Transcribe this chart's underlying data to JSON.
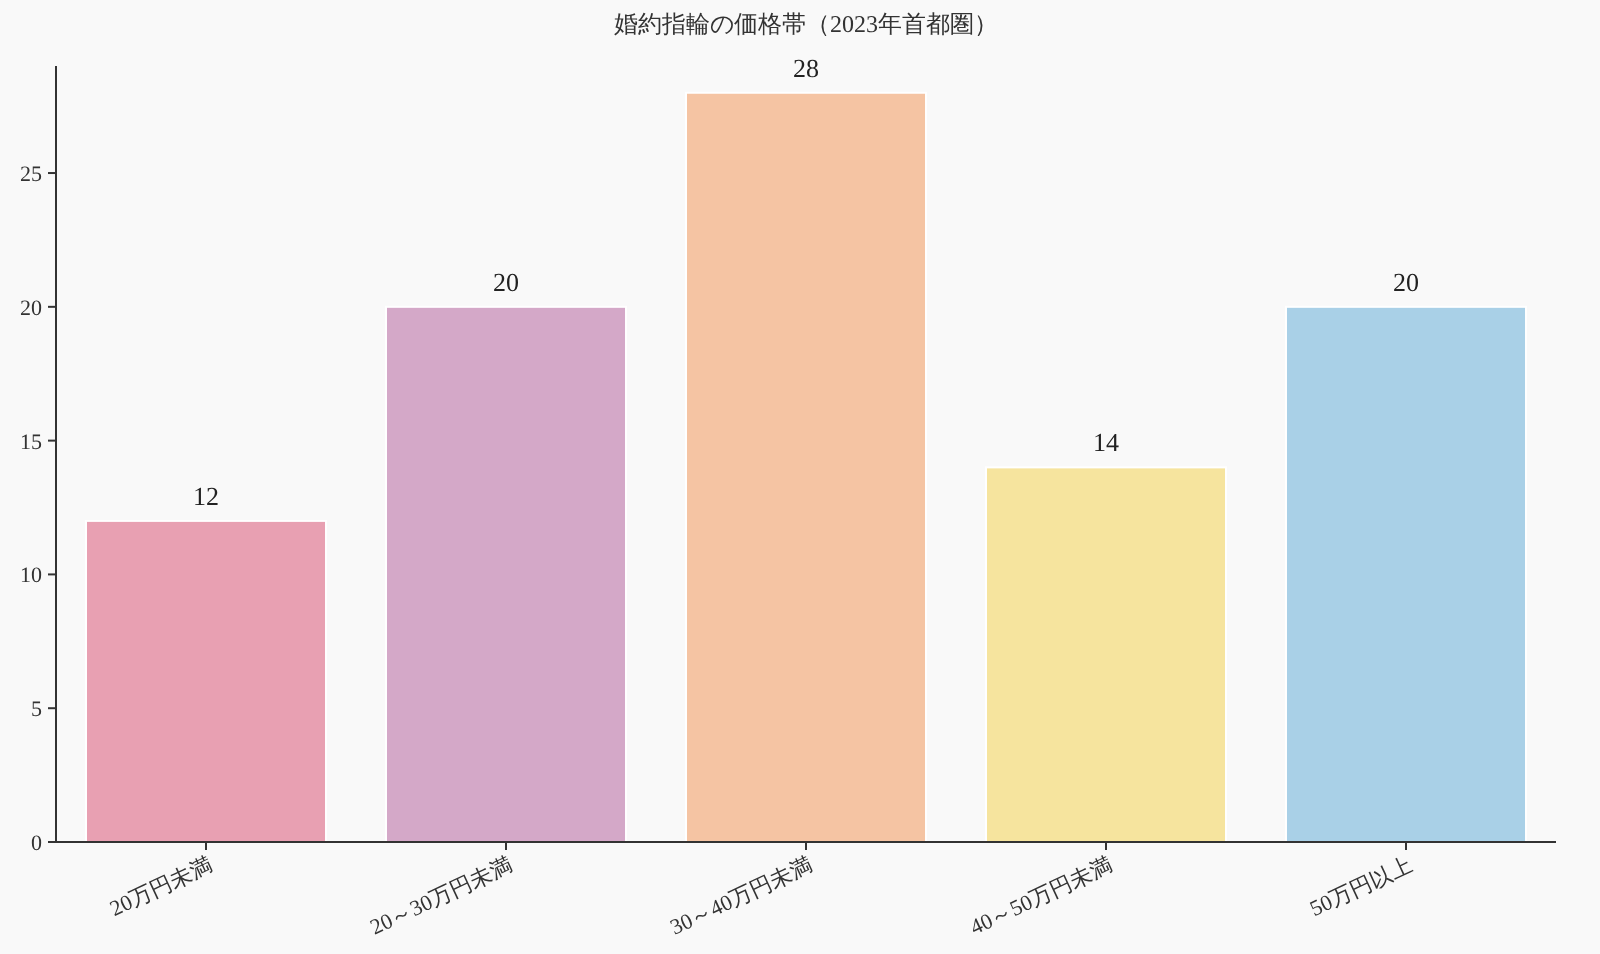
{
  "chart_data": {
    "type": "bar",
    "title": "婚約指輪の価格帯（2023年首都圏）",
    "categories": [
      "20万円未満",
      "20～30万円未満",
      "30～40万円未満",
      "40～50万円未満",
      "50万円以上"
    ],
    "values": [
      12,
      20,
      28,
      14,
      20
    ],
    "colors": [
      "#e8a0b2",
      "#d4a8c8",
      "#f5c4a3",
      "#f6e49e",
      "#a9d0e7"
    ],
    "ylim": [
      0,
      29
    ],
    "yticks": [
      0,
      5,
      10,
      15,
      20,
      25
    ],
    "data_labels": true,
    "grid": false
  }
}
